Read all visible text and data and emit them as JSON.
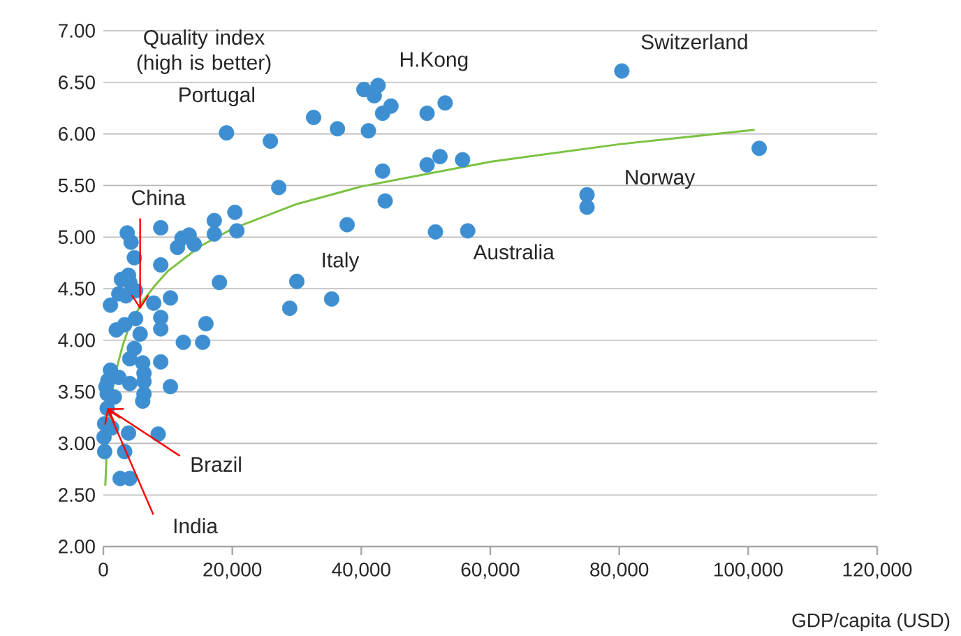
{
  "chart_data": {
    "type": "scatter",
    "xlabel": "GDP/capita (USD)",
    "annotations": [
      "Quality index (high is better)",
      {
        "text": "Switzerland",
        "x": 80400,
        "y": 6.61
      },
      {
        "text": "H.Kong",
        "x": 42600,
        "y": 6.47
      },
      {
        "text": "Portugal",
        "x": 19100,
        "y": 6.01
      },
      {
        "text": "Norway",
        "x": 75000,
        "y": 5.41
      },
      {
        "text": "Australia",
        "x": 56500,
        "y": 5.06
      },
      {
        "text": "Italy",
        "x": 30000,
        "y": 4.57
      },
      {
        "text": "China",
        "x": 5700,
        "y": 4.3
      },
      {
        "text": "Brazil",
        "x": 600,
        "y": 3.34
      },
      {
        "text": "India",
        "x": 600,
        "y": 3.34
      }
    ],
    "series": [
      {
        "color": "#3d8fd1",
        "x": [
          80400,
          101700,
          75000,
          75000,
          56500,
          51500,
          55700,
          52200,
          50200,
          53000,
          50200,
          43700,
          43300,
          41100,
          43300,
          44600,
          40400,
          42600,
          42000,
          36300,
          32600,
          37800,
          35400,
          30000,
          28900,
          27200,
          25900,
          19100,
          20400,
          17200,
          17200,
          20700,
          18000,
          15900,
          15400,
          12400,
          8900,
          3700,
          4300,
          12200,
          13300,
          14100,
          11500,
          4800,
          8900,
          2800,
          3900,
          4100,
          2400,
          3500,
          1100,
          7800,
          10400,
          5000,
          8900,
          8900,
          2000,
          3300,
          5000,
          5700,
          4800,
          4100,
          6100,
          8900,
          6300,
          6300,
          10400,
          1100,
          700,
          400,
          2400,
          4100,
          6300,
          6100,
          600,
          1700,
          600,
          200,
          1300,
          3900,
          8500,
          100,
          200,
          3300,
          2600,
          4100
        ],
        "values": [
          6.61,
          5.86,
          5.41,
          5.29,
          5.06,
          5.05,
          5.75,
          5.78,
          5.7,
          6.3,
          6.2,
          5.35,
          5.64,
          6.03,
          6.2,
          6.27,
          6.43,
          6.47,
          6.37,
          6.05,
          6.16,
          5.12,
          4.4,
          4.57,
          4.31,
          5.48,
          5.93,
          6.01,
          5.24,
          5.16,
          5.03,
          5.06,
          4.56,
          4.16,
          3.98,
          3.98,
          5.09,
          5.04,
          4.95,
          4.99,
          5.02,
          4.93,
          4.9,
          4.8,
          4.73,
          4.59,
          4.63,
          4.56,
          4.45,
          4.43,
          4.34,
          4.36,
          4.41,
          4.48,
          4.22,
          4.11,
          4.1,
          4.15,
          4.21,
          4.06,
          3.92,
          3.82,
          3.78,
          3.79,
          3.68,
          3.6,
          3.55,
          3.71,
          3.61,
          3.55,
          3.64,
          3.58,
          3.48,
          3.41,
          3.48,
          3.45,
          3.34,
          3.19,
          3.15,
          3.1,
          3.09,
          3.06,
          2.92,
          2.92,
          2.66,
          2.66
        ]
      },
      {
        "type": "line",
        "color": "#7cc242",
        "x": [
          300,
          500,
          1000,
          1500,
          2000,
          3000,
          4000,
          6000,
          8000,
          10000,
          15000,
          20000,
          30000,
          40000,
          60000,
          80000,
          101000
        ],
        "values": [
          2.59,
          2.89,
          3.3,
          3.54,
          3.71,
          3.95,
          4.13,
          4.37,
          4.53,
          4.67,
          4.91,
          5.08,
          5.32,
          5.49,
          5.73,
          5.9,
          6.04
        ]
      }
    ],
    "grid": "y",
    "xlim": [
      0,
      120000
    ],
    "xticks": [
      {
        "value": 0,
        "label": "0"
      },
      {
        "value": 20000,
        "label": "20,000"
      },
      {
        "value": 40000,
        "label": "40,000"
      },
      {
        "value": 60000,
        "label": "60,000"
      },
      {
        "value": 80000,
        "label": "80,000"
      },
      {
        "value": 100000,
        "label": "100,000"
      },
      {
        "value": 120000,
        "label": "120,000"
      }
    ],
    "ylim": [
      2,
      7
    ],
    "yticks": [
      {
        "value": 2,
        "label": "2.00"
      },
      {
        "value": 2.5,
        "label": "2.50"
      },
      {
        "value": 3,
        "label": "3.00"
      },
      {
        "value": 3.5,
        "label": "3.50"
      },
      {
        "value": 4,
        "label": "4.00"
      },
      {
        "value": 4.5,
        "label": "4.50"
      },
      {
        "value": 5,
        "label": "5.00"
      },
      {
        "value": 5.5,
        "label": "5.50"
      },
      {
        "value": 6,
        "label": "6.00"
      },
      {
        "value": 6.5,
        "label": "6.50"
      },
      {
        "value": 7,
        "label": "7.00"
      }
    ]
  }
}
